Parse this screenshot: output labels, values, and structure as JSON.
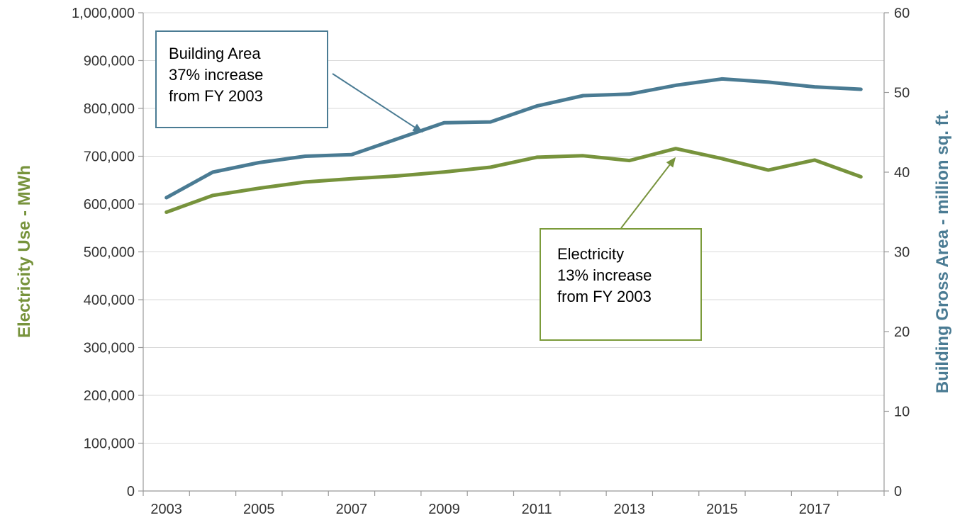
{
  "chart_data": {
    "type": "line",
    "x": [
      2003,
      2004,
      2005,
      2006,
      2007,
      2008,
      2009,
      2010,
      2011,
      2012,
      2013,
      2014,
      2015,
      2016,
      2017,
      2018
    ],
    "x_tick_labels": [
      "2003",
      "2005",
      "2007",
      "2009",
      "2011",
      "2013",
      "2015",
      "2017"
    ],
    "series": [
      {
        "name": "Electricity",
        "axis": "left",
        "color": "#77933c",
        "values": [
          583000,
          618000,
          633000,
          646000,
          653000,
          659000,
          667000,
          677000,
          698000,
          701000,
          691000,
          716000,
          695000,
          671000,
          692000,
          657000
        ]
      },
      {
        "name": "Building Area",
        "axis": "right",
        "color": "#4a7b93",
        "values": [
          36.8,
          40.0,
          41.2,
          42.0,
          42.2,
          44.2,
          46.2,
          46.3,
          48.3,
          49.6,
          49.8,
          50.9,
          51.7,
          51.3,
          50.7,
          50.4
        ]
      }
    ],
    "y_left": {
      "label": "Electricity Use - MWh",
      "color": "#77933c",
      "ylim": [
        0,
        1000000
      ],
      "ticks": [
        "0",
        "100,000",
        "200,000",
        "300,000",
        "400,000",
        "500,000",
        "600,000",
        "700,000",
        "800,000",
        "900,000",
        "1,000,000"
      ]
    },
    "y_right": {
      "label": "Building Gross Area - million sq. ft.",
      "color": "#4a7b93",
      "ylim": [
        0,
        60
      ],
      "ticks": [
        "0",
        "10",
        "20",
        "30",
        "40",
        "50",
        "60"
      ]
    },
    "annotations": [
      {
        "series": "Building Area",
        "lines": [
          "Building Area",
          "37% increase",
          "from FY 2003"
        ],
        "points_to_x": 2009
      },
      {
        "series": "Electricity",
        "lines": [
          "Electricity",
          "13% increase",
          "from FY 2003"
        ],
        "points_to_x": 2014
      }
    ],
    "grid": "horizontal"
  }
}
